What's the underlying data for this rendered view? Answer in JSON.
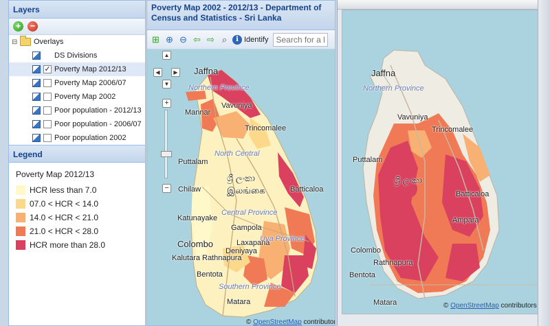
{
  "layers_panel": {
    "title": "Layers",
    "add_tooltip": "+",
    "remove_tooltip": "−",
    "tree": [
      {
        "label": "Overlays",
        "checked": null
      },
      {
        "label": "DS Divisions",
        "checked": false
      },
      {
        "label": "Poverty Map 2012/13",
        "checked": true
      },
      {
        "label": "Poverty Map 2006/07",
        "checked": false
      },
      {
        "label": "Poverty Map 2002",
        "checked": false
      },
      {
        "label": "Poor population - 2012/13",
        "checked": false
      },
      {
        "label": "Poor population - 2006/07",
        "checked": false
      },
      {
        "label": "Poor population 2002",
        "checked": false
      }
    ]
  },
  "legend": {
    "title": "Legend",
    "subtitle": "Poverty Map 2012/13",
    "items": [
      {
        "label": "HCR less than 7.0",
        "color": "#fff9c9"
      },
      {
        "label": "07.0 < HCR < 14.0",
        "color": "#fcd98a"
      },
      {
        "label": "14.0 < HCR < 21.0",
        "color": "#f9b073"
      },
      {
        "label": "21.0 < HCR < 28.0",
        "color": "#f07a56"
      },
      {
        "label": "HCR more than 28.0",
        "color": "#d9415e"
      }
    ]
  },
  "map_window": {
    "title_line1": "Poverty Map 2002 - 2012/13 - Department of",
    "title_line2": "Census and Statistics - Sri Lanka",
    "identify_label": "Identify",
    "search_placeholder": "Search for a lo",
    "attribution_prefix": "©",
    "attribution_link": "OpenStreetMap",
    "attribution_suffix": "contributors",
    "labels": {
      "jaffna": "Jaffna",
      "northern": "Northern Province",
      "mannar": "Mannar",
      "vavuniya": "Vavuniya",
      "trincomalee": "Trincomalee",
      "north_central": "North Central",
      "puttalam": "Puttalam",
      "lanka": "ශ්‍රී ලංකා",
      "ilangai": "இலங்கை",
      "batticaloa": "Batticaloa",
      "chilaw": "Chilaw",
      "katunayake": "Katunayake",
      "gampola": "Gampola",
      "central": "Central Province",
      "colombo": "Colombo",
      "laxapana": "Laxapana",
      "uva": "Uva Province",
      "kalutara": "Kalutara",
      "ratnapura": "Rathnapura",
      "bentota": "Bentota",
      "deniyaya": "Deniyaya",
      "southern": "Southern Province",
      "matara": "Matara",
      "ampara": "Ampara"
    }
  },
  "bg_window": {
    "attribution_prefix": "©",
    "attribution_link": "OpenStreetMap",
    "attribution_suffix": "contributors"
  }
}
